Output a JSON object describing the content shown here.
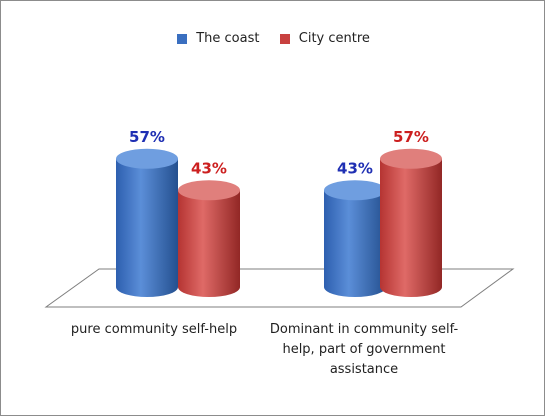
{
  "chart_data": {
    "type": "bar",
    "style": "3d-cylinder",
    "categories": [
      "pure community self-help",
      "Dominant in community self-help, part of government assistance"
    ],
    "series": [
      {
        "name": "The coast",
        "values": [
          57,
          43
        ],
        "labels": [
          "57%",
          "43%"
        ],
        "color": "#3a6fc0",
        "label_color": "#1f2fb3"
      },
      {
        "name": "City centre",
        "values": [
          43,
          57
        ],
        "labels": [
          "43%",
          "57%"
        ],
        "color": "#c8413f",
        "label_color": "#cc1f1f"
      }
    ],
    "ylim": [
      0,
      100
    ],
    "title": "",
    "xlabel": "",
    "ylabel": "",
    "legend_position": "top",
    "grid": false
  }
}
